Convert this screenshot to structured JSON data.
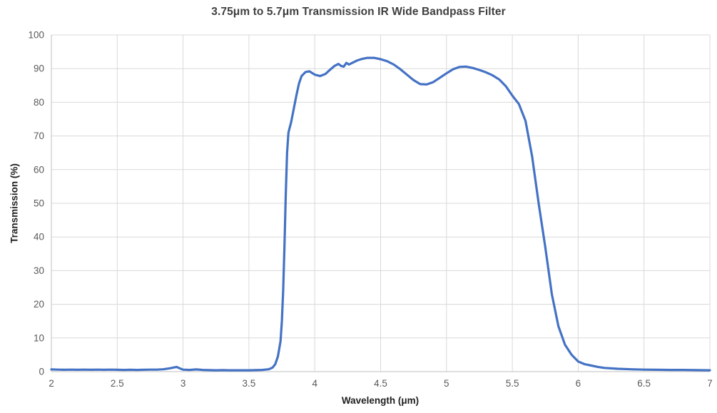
{
  "chart": {
    "title": "3.75μm to 5.7μm Transmission IR Wide Bandpass Filter",
    "xlabel": "Wavelength (μm)",
    "ylabel": "Transmission (%)"
  },
  "colors": {
    "line": "#4472C4",
    "grid": "#d9d9d9",
    "axis": "#bfbfbf",
    "tick_label": "#595959",
    "title": "#3f3f3f",
    "axis_title": "#1f1f1f",
    "background": "#ffffff"
  },
  "chart_data": {
    "type": "line",
    "title": "3.75μm to 5.7μm Transmission IR Wide Bandpass Filter",
    "xlabel": "Wavelength (μm)",
    "ylabel": "Transmission (%)",
    "xlim": [
      2,
      7
    ],
    "ylim": [
      0,
      100
    ],
    "x_ticks": [
      2,
      2.5,
      3,
      3.5,
      4,
      4.5,
      5,
      5.5,
      6,
      6.5,
      7
    ],
    "y_ticks": [
      0,
      10,
      20,
      30,
      40,
      50,
      60,
      70,
      80,
      90,
      100
    ],
    "grid": true,
    "legend": "none",
    "series": [
      {
        "name": "Transmission",
        "color": "#4472C4",
        "points": [
          [
            2.0,
            0.65
          ],
          [
            2.05,
            0.6
          ],
          [
            2.1,
            0.55
          ],
          [
            2.15,
            0.6
          ],
          [
            2.2,
            0.55
          ],
          [
            2.25,
            0.6
          ],
          [
            2.3,
            0.55
          ],
          [
            2.35,
            0.6
          ],
          [
            2.4,
            0.55
          ],
          [
            2.45,
            0.6
          ],
          [
            2.5,
            0.55
          ],
          [
            2.55,
            0.5
          ],
          [
            2.6,
            0.55
          ],
          [
            2.65,
            0.5
          ],
          [
            2.7,
            0.55
          ],
          [
            2.75,
            0.6
          ],
          [
            2.8,
            0.6
          ],
          [
            2.85,
            0.7
          ],
          [
            2.9,
            1.0
          ],
          [
            2.95,
            1.4
          ],
          [
            2.98,
            0.9
          ],
          [
            3.0,
            0.6
          ],
          [
            3.05,
            0.5
          ],
          [
            3.1,
            0.65
          ],
          [
            3.15,
            0.5
          ],
          [
            3.2,
            0.45
          ],
          [
            3.25,
            0.4
          ],
          [
            3.3,
            0.45
          ],
          [
            3.35,
            0.4
          ],
          [
            3.4,
            0.4
          ],
          [
            3.45,
            0.4
          ],
          [
            3.5,
            0.4
          ],
          [
            3.55,
            0.45
          ],
          [
            3.6,
            0.5
          ],
          [
            3.65,
            0.7
          ],
          [
            3.68,
            1.2
          ],
          [
            3.7,
            2.2
          ],
          [
            3.72,
            4.5
          ],
          [
            3.74,
            9
          ],
          [
            3.75,
            15
          ],
          [
            3.76,
            24
          ],
          [
            3.77,
            37
          ],
          [
            3.78,
            53
          ],
          [
            3.79,
            65
          ],
          [
            3.8,
            71
          ],
          [
            3.81,
            72.5
          ],
          [
            3.82,
            74
          ],
          [
            3.84,
            78
          ],
          [
            3.86,
            82
          ],
          [
            3.88,
            85.5
          ],
          [
            3.9,
            87.8
          ],
          [
            3.93,
            89
          ],
          [
            3.96,
            89.2
          ],
          [
            4.0,
            88.2
          ],
          [
            4.04,
            87.8
          ],
          [
            4.08,
            88.4
          ],
          [
            4.12,
            89.8
          ],
          [
            4.15,
            90.8
          ],
          [
            4.18,
            91.4
          ],
          [
            4.2,
            90.8
          ],
          [
            4.22,
            90.6
          ],
          [
            4.24,
            91.7
          ],
          [
            4.26,
            91.2
          ],
          [
            4.28,
            91.6
          ],
          [
            4.32,
            92.4
          ],
          [
            4.36,
            92.9
          ],
          [
            4.4,
            93.2
          ],
          [
            4.45,
            93.2
          ],
          [
            4.5,
            92.8
          ],
          [
            4.55,
            92.2
          ],
          [
            4.6,
            91.2
          ],
          [
            4.65,
            89.8
          ],
          [
            4.7,
            88.2
          ],
          [
            4.75,
            86.6
          ],
          [
            4.8,
            85.4
          ],
          [
            4.85,
            85.3
          ],
          [
            4.9,
            86.0
          ],
          [
            4.95,
            87.3
          ],
          [
            5.0,
            88.6
          ],
          [
            5.05,
            89.8
          ],
          [
            5.1,
            90.5
          ],
          [
            5.15,
            90.6
          ],
          [
            5.2,
            90.2
          ],
          [
            5.25,
            89.6
          ],
          [
            5.3,
            88.9
          ],
          [
            5.35,
            88.0
          ],
          [
            5.4,
            86.8
          ],
          [
            5.45,
            84.8
          ],
          [
            5.5,
            82.0
          ],
          [
            5.55,
            79.5
          ],
          [
            5.6,
            74.5
          ],
          [
            5.65,
            64
          ],
          [
            5.7,
            50
          ],
          [
            5.75,
            37
          ],
          [
            5.8,
            23
          ],
          [
            5.85,
            13.5
          ],
          [
            5.9,
            8
          ],
          [
            5.95,
            5
          ],
          [
            6.0,
            3
          ],
          [
            6.05,
            2.2
          ],
          [
            6.1,
            1.8
          ],
          [
            6.15,
            1.4
          ],
          [
            6.2,
            1.1
          ],
          [
            6.3,
            0.85
          ],
          [
            6.4,
            0.7
          ],
          [
            6.5,
            0.6
          ],
          [
            6.6,
            0.55
          ],
          [
            6.7,
            0.5
          ],
          [
            6.8,
            0.5
          ],
          [
            6.9,
            0.45
          ],
          [
            7.0,
            0.4
          ]
        ]
      }
    ]
  }
}
